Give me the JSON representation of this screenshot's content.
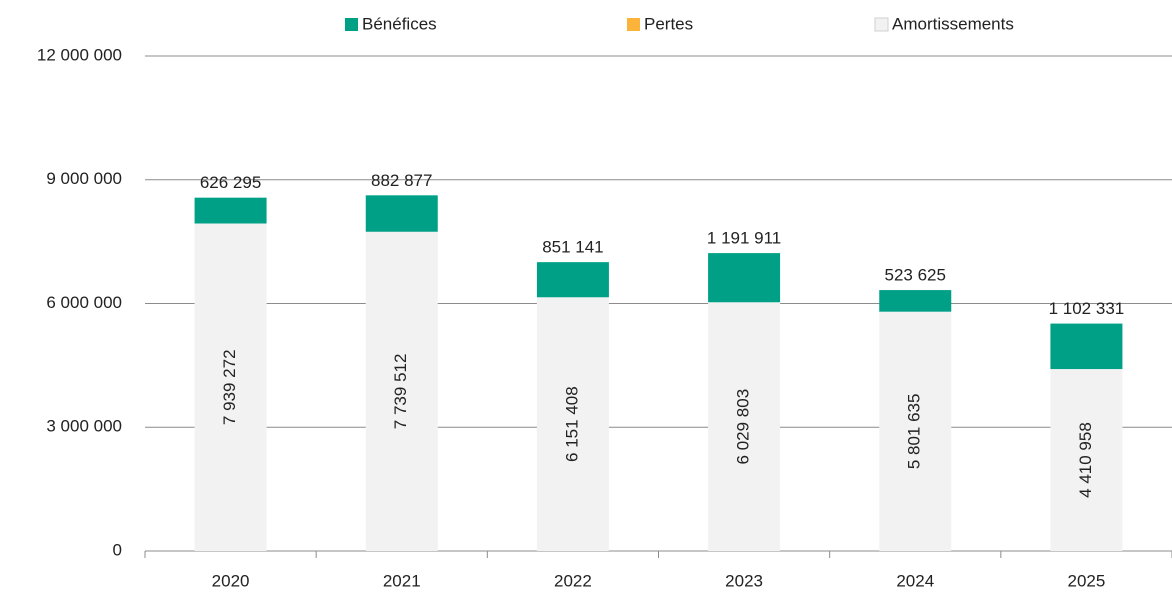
{
  "chart_data": {
    "type": "stacked_bar",
    "categories": [
      "2020",
      "2021",
      "2022",
      "2023",
      "2024",
      "2025"
    ],
    "series": [
      {
        "name": "Bénéfices",
        "color": "#00a087",
        "values": [
          626295,
          882877,
          851141,
          1191911,
          523625,
          1102331
        ],
        "value_labels": [
          "626 295",
          "882 877",
          "851 141",
          "1 191 911",
          "523 625",
          "1 102 331"
        ]
      },
      {
        "name": "Pertes",
        "color": "#fbb33a",
        "values": [
          0,
          0,
          0,
          0,
          0,
          0
        ]
      },
      {
        "name": "Amortissements",
        "color": "#f2f2f2",
        "values": [
          7939272,
          7739512,
          6151408,
          6029803,
          5801635,
          4410958
        ],
        "value_labels": [
          "7 939 272",
          "7 739 512",
          "6 151 408",
          "6 029 803",
          "5 801 635",
          "4 410 958"
        ]
      }
    ],
    "ylim": [
      0,
      12000000
    ],
    "yticks": [
      0,
      {
        "value": 3000000,
        "label": "3 000 000"
      },
      {
        "value": 6000000,
        "label": "6 000 000"
      },
      {
        "value": 9000000,
        "label": "9 000 000"
      },
      {
        "value": 12000000,
        "label": "12 000 000"
      }
    ],
    "grid": true,
    "legend": "top"
  }
}
